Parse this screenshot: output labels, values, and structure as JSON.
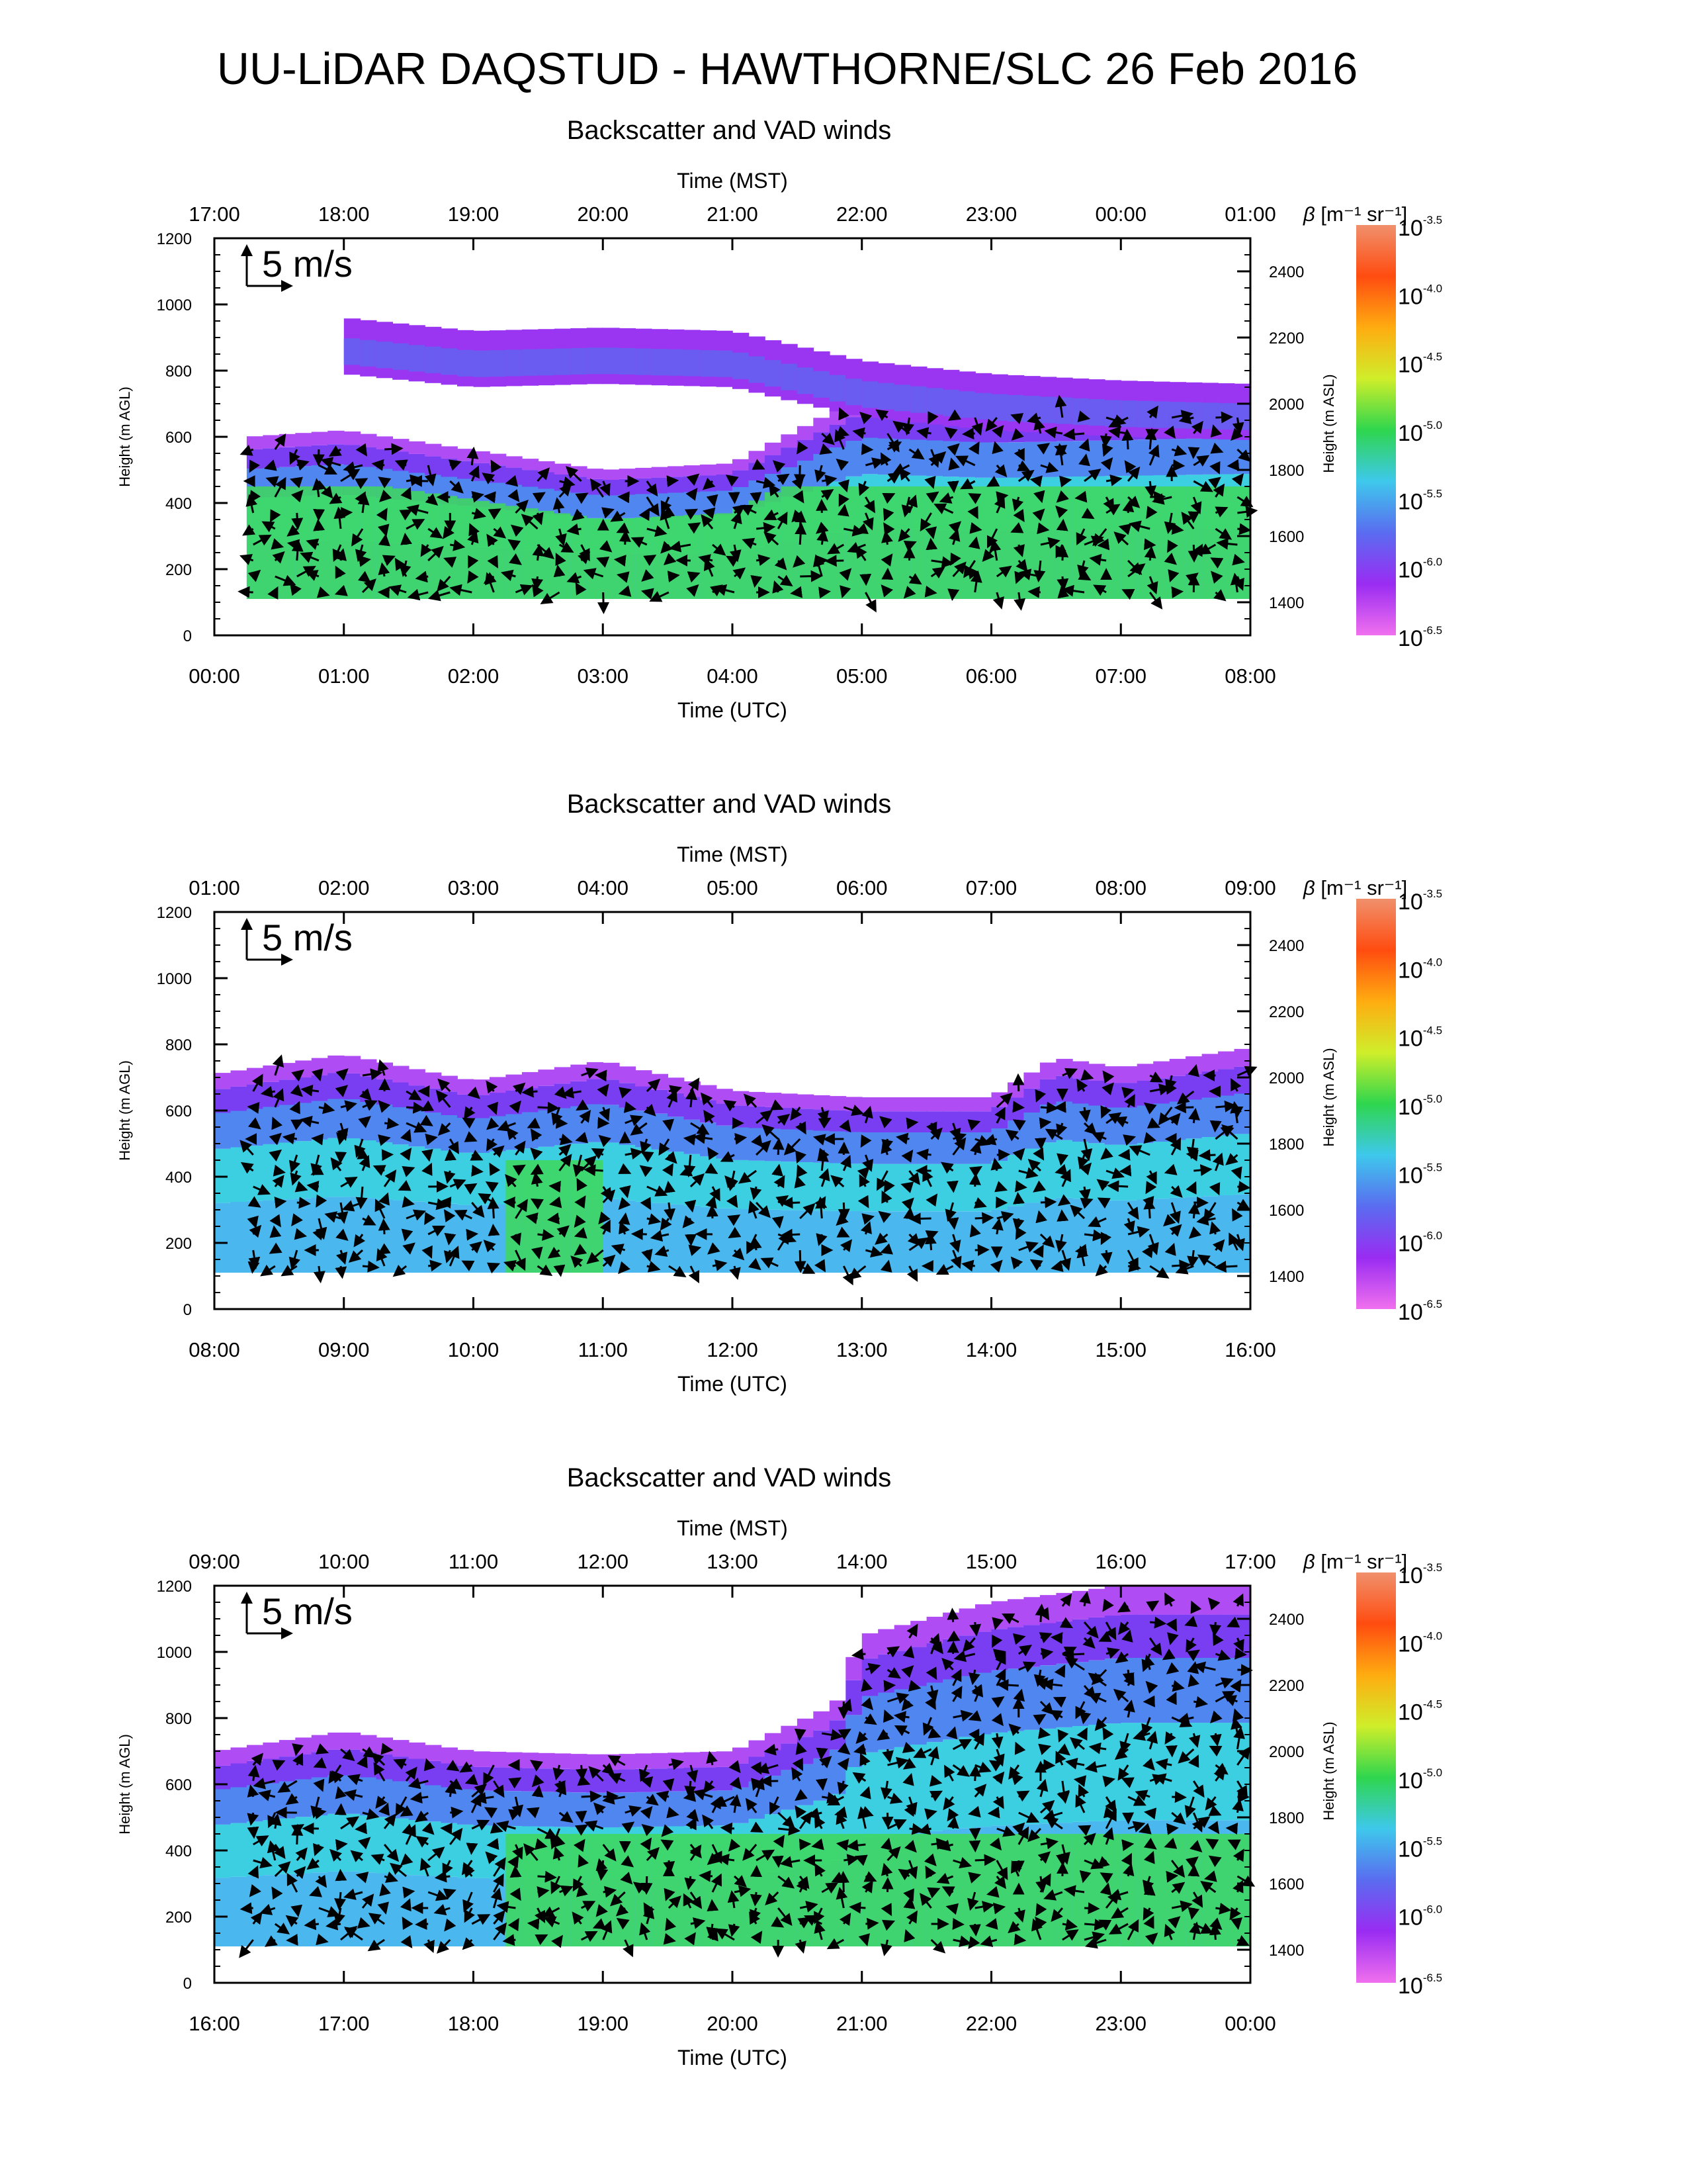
{
  "figure": {
    "title": "UU-LiDAR DAQSTUD - HAWTHORNE/SLC 26 Feb 2016"
  },
  "colorbar": {
    "label_symbol": "β",
    "label_unit": "[m⁻¹ sr⁻¹]",
    "ticks": [
      "10^-3.5",
      "10^-4.0",
      "10^-4.5",
      "10^-5.0",
      "10^-5.5",
      "10^-6.0",
      "10^-6.5"
    ],
    "range_log10": [
      -6.5,
      -3.5
    ],
    "colors": [
      "#f070ee",
      "#9a2cf2",
      "#5a6cf0",
      "#3ec8ec",
      "#2ed64e",
      "#cfee2a",
      "#ffac10",
      "#ff4c10",
      "#f0906c"
    ],
    "colormap_name": "rainbow"
  },
  "chart_data": [
    {
      "type": "heatmap",
      "title": "Backscatter and VAD winds",
      "top_xlabel": "Time (MST)",
      "top_ticks": [
        "17:00",
        "18:00",
        "19:00",
        "20:00",
        "21:00",
        "22:00",
        "23:00",
        "00:00",
        "01:00"
      ],
      "xlabel": "Time (UTC)",
      "x_ticks": [
        "00:00",
        "01:00",
        "02:00",
        "03:00",
        "04:00",
        "05:00",
        "06:00",
        "07:00",
        "08:00"
      ],
      "xlim_hours": [
        0,
        8
      ],
      "ylabel": "Height (m AGL)",
      "ylim": [
        0,
        1200
      ],
      "y_ticks": [
        "0",
        "200",
        "400",
        "600",
        "800",
        "1000",
        "1200"
      ],
      "y2label": "Height (m ASL)",
      "y2_ticks": [
        "1400",
        "1600",
        "1800",
        "2000",
        "2200",
        "2400"
      ],
      "y2_offset": 1300,
      "wind_scale_label": "5 m/s",
      "aerosol_top": [
        [
          0.25,
          600
        ],
        [
          1,
          620
        ],
        [
          2,
          560
        ],
        [
          3,
          500
        ],
        [
          4,
          520
        ],
        [
          5,
          720
        ],
        [
          6,
          700
        ],
        [
          7,
          710
        ],
        [
          8,
          720
        ]
      ],
      "upper_layer": [
        [
          1,
          960
        ],
        [
          2,
          920
        ],
        [
          3,
          930
        ],
        [
          4,
          920
        ],
        [
          5,
          830
        ],
        [
          6,
          790
        ],
        [
          7,
          770
        ],
        [
          8,
          760
        ]
      ],
      "bottom_m": 110,
      "strong_region": [
        [
          0.3,
          8
        ],
        [
          3,
          6
        ],
        [
          4,
          5
        ]
      ]
    },
    {
      "type": "heatmap",
      "title": "Backscatter and VAD winds",
      "top_xlabel": "Time (MST)",
      "top_ticks": [
        "01:00",
        "02:00",
        "03:00",
        "04:00",
        "05:00",
        "06:00",
        "07:00",
        "08:00",
        "09:00"
      ],
      "xlabel": "Time (UTC)",
      "x_ticks": [
        "08:00",
        "09:00",
        "10:00",
        "11:00",
        "12:00",
        "13:00",
        "14:00",
        "15:00",
        "16:00"
      ],
      "xlim_hours": [
        0,
        8
      ],
      "ylabel": "Height (m AGL)",
      "ylim": [
        0,
        1200
      ],
      "y_ticks": [
        "0",
        "200",
        "400",
        "600",
        "800",
        "1000",
        "1200"
      ],
      "y2label": "Height (m ASL)",
      "y2_ticks": [
        "1400",
        "1600",
        "1800",
        "2000",
        "2200",
        "2400"
      ],
      "y2_offset": 1300,
      "wind_scale_label": "5 m/s",
      "aerosol_top": [
        [
          0,
          710
        ],
        [
          1,
          770
        ],
        [
          2,
          690
        ],
        [
          3,
          750
        ],
        [
          4,
          660
        ],
        [
          5,
          640
        ],
        [
          6,
          640
        ],
        [
          6.5,
          760
        ],
        [
          7,
          730
        ],
        [
          8,
          790
        ]
      ],
      "upper_layer": [],
      "bottom_m": 110,
      "strong_region": [
        [
          2.3,
          3
        ],
        [
          4,
          4
        ]
      ]
    },
    {
      "type": "heatmap",
      "title": "Backscatter and VAD winds",
      "top_xlabel": "Time (MST)",
      "top_ticks": [
        "09:00",
        "10:00",
        "11:00",
        "12:00",
        "13:00",
        "14:00",
        "15:00",
        "16:00",
        "17:00"
      ],
      "xlabel": "Time (UTC)",
      "x_ticks": [
        "16:00",
        "17:00",
        "18:00",
        "19:00",
        "20:00",
        "21:00",
        "22:00",
        "23:00",
        "00:00"
      ],
      "xlim_hours": [
        0,
        8
      ],
      "ylabel": "Height (m AGL)",
      "ylim": [
        0,
        1200
      ],
      "y_ticks": [
        "0",
        "200",
        "400",
        "600",
        "800",
        "1000",
        "1200"
      ],
      "y2label": "Height (m ASL)",
      "y2_ticks": [
        "1400",
        "1600",
        "1800",
        "2000",
        "2200",
        "2400"
      ],
      "y2_offset": 1300,
      "wind_scale_label": "5 m/s",
      "aerosol_top": [
        [
          0,
          700
        ],
        [
          1,
          760
        ],
        [
          2,
          700
        ],
        [
          3,
          690
        ],
        [
          4,
          700
        ],
        [
          4.8,
          840
        ],
        [
          5,
          1050
        ],
        [
          6,
          1150
        ],
        [
          7,
          1200
        ],
        [
          8,
          1200
        ]
      ],
      "upper_layer": [],
      "bottom_m": 110,
      "strong_region": [
        [
          2.2,
          8
        ]
      ]
    }
  ]
}
